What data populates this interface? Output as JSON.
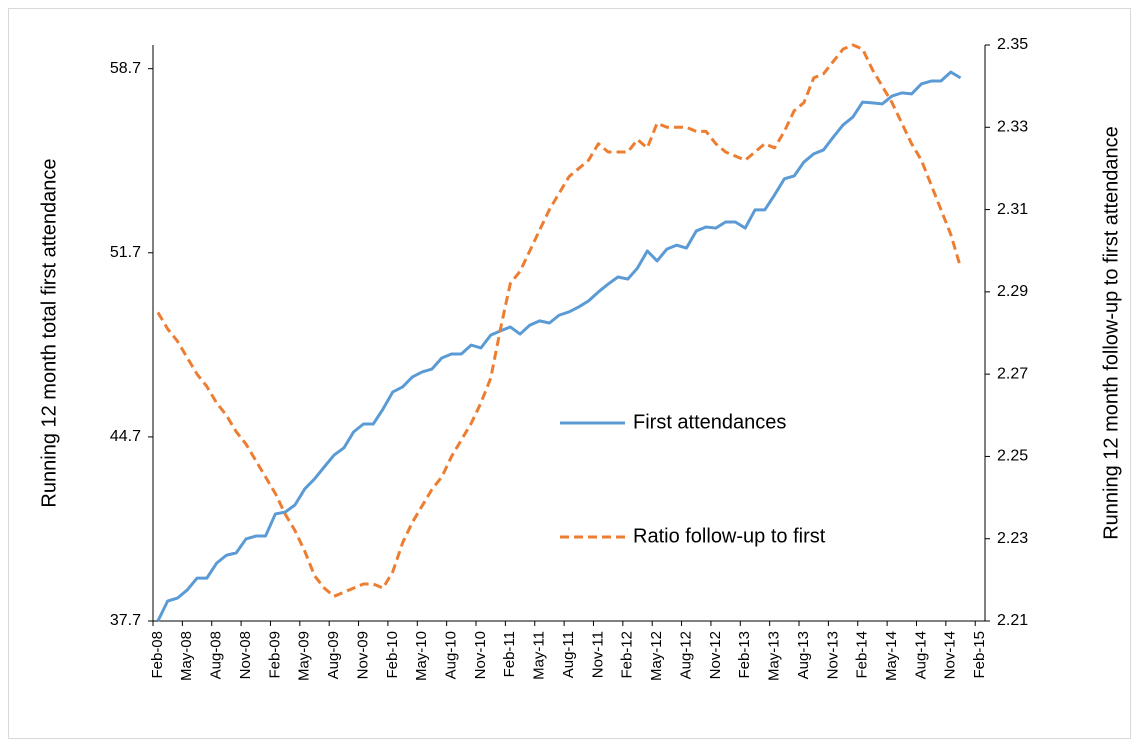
{
  "chart_data": {
    "type": "line",
    "y_label": "Running 12 month total first attendance",
    "y2_label": "Running 12 month follow-up to first attendance",
    "categories": [
      "Feb-08",
      null,
      null,
      "May-08",
      null,
      null,
      "Aug-08",
      null,
      null,
      "Nov-08",
      null,
      null,
      "Feb-09",
      null,
      null,
      "May-09",
      null,
      null,
      "Aug-09",
      null,
      null,
      "Nov-09",
      null,
      null,
      "Feb-10",
      null,
      null,
      "May-10",
      null,
      null,
      "Aug-10",
      null,
      null,
      "Nov-10",
      null,
      null,
      "Feb-11",
      null,
      null,
      "May-11",
      null,
      null,
      "Aug-11",
      null,
      null,
      "Nov-11",
      null,
      null,
      "Feb-12",
      null,
      null,
      "May-12",
      null,
      null,
      "Aug-12",
      null,
      null,
      "Nov-12",
      null,
      null,
      "Feb-13",
      null,
      null,
      "May-13",
      null,
      null,
      "Aug-13",
      null,
      null,
      "Nov-13",
      null,
      null,
      "Feb-14",
      null,
      null,
      "May-14",
      null,
      null,
      "Aug-14",
      null,
      null,
      "Nov-14",
      null,
      null,
      "Feb-15"
    ],
    "series": [
      {
        "name": "First attendances",
        "color": "#5b9bd5",
        "dash": false,
        "values": [
          37.7,
          38.46,
          38.57,
          38.88,
          39.33,
          39.33,
          39.9,
          40.2,
          40.29,
          40.82,
          40.93,
          40.93,
          41.77,
          41.84,
          42.11,
          42.72,
          43.1,
          43.56,
          44.01,
          44.28,
          44.89,
          45.19,
          45.19,
          45.76,
          46.41,
          46.6,
          46.98,
          47.17,
          47.28,
          47.7,
          47.85,
          47.85,
          48.19,
          48.08,
          48.57,
          48.73,
          48.88,
          48.61,
          48.95,
          49.11,
          49.03,
          49.33,
          49.45,
          49.64,
          49.87,
          50.21,
          50.51,
          50.78,
          50.7,
          51.12,
          51.77,
          51.39,
          51.84,
          51.99,
          51.88,
          52.53,
          52.68,
          52.64,
          52.87,
          52.87,
          52.64,
          53.33,
          53.33,
          53.9,
          54.51,
          54.62,
          55.15,
          55.46,
          55.61,
          56.1,
          56.56,
          56.86,
          57.43,
          57.4,
          57.36,
          57.66,
          57.78,
          57.74,
          58.12,
          58.23,
          58.23,
          58.57,
          58.35,
          null,
          null
        ]
      },
      {
        "name": "Ratio follow-up to first",
        "color": "#ed7d31",
        "dash": true,
        "axis": "y2",
        "values": [
          2.285,
          2.281,
          2.278,
          2.274,
          2.27,
          2.267,
          2.263,
          2.26,
          2.256,
          2.253,
          2.249,
          2.245,
          2.241,
          2.236,
          2.232,
          2.227,
          2.221,
          2.218,
          2.216,
          2.217,
          2.218,
          2.219,
          2.219,
          2.218,
          2.222,
          2.229,
          2.234,
          2.238,
          2.242,
          2.245,
          2.25,
          2.254,
          2.258,
          2.263,
          2.269,
          2.281,
          2.292,
          2.295,
          2.3,
          2.305,
          2.31,
          2.314,
          2.318,
          2.32,
          2.322,
          2.326,
          2.324,
          2.324,
          2.324,
          2.327,
          2.325,
          2.331,
          2.33,
          2.33,
          2.33,
          2.329,
          2.329,
          2.326,
          2.324,
          2.323,
          2.322,
          2.324,
          2.326,
          2.325,
          2.329,
          2.334,
          2.336,
          2.342,
          2.343,
          2.346,
          2.349,
          2.35,
          2.349,
          2.344,
          2.34,
          2.336,
          2.331,
          2.326,
          2.322,
          2.316,
          2.31,
          2.304,
          2.296,
          null,
          null
        ]
      }
    ],
    "ylim": [
      37.7,
      59.6
    ],
    "yticks": [
      37.7,
      44.7,
      51.7,
      58.7
    ],
    "y2lim": [
      2.21,
      2.35
    ],
    "y2ticks": [
      2.21,
      2.23,
      2.25,
      2.27,
      2.29,
      2.31,
      2.33,
      2.35
    ],
    "grid": false,
    "legend": "center-right"
  }
}
